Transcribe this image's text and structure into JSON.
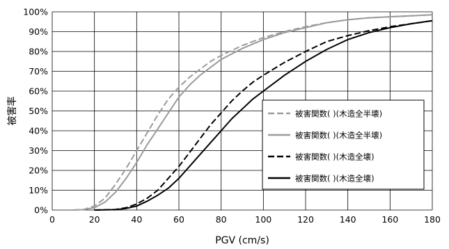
{
  "chart_data": {
    "type": "line",
    "title": "",
    "xlabel": "PGV (cm/s)",
    "ylabel": "被害率",
    "xlim": [
      0,
      180
    ],
    "ylim": [
      0,
      1
    ],
    "x_ticks": [
      0,
      20,
      40,
      60,
      80,
      100,
      120,
      140,
      160,
      180
    ],
    "x_tick_labels": [
      "0",
      "20",
      "40",
      "60",
      "80",
      "100",
      "120",
      "140",
      "160",
      "180"
    ],
    "y_ticks": [
      0,
      0.1,
      0.2,
      0.3,
      0.4,
      0.5,
      0.6,
      0.7,
      0.8,
      0.9,
      1.0
    ],
    "y_tick_labels": [
      "0%",
      "10%",
      "20%",
      "30%",
      "40%",
      "50%",
      "60%",
      "70%",
      "80%",
      "90%",
      "100%"
    ],
    "grid": true,
    "legend_position": "right",
    "colors": {
      "gray": "#9a9a9a",
      "black": "#000000",
      "grid": "#000000"
    },
    "series": [
      {
        "name": "被害関数( )(木造全半壊)",
        "color": "#9a9a9a",
        "dash": "dashed",
        "x": [
          10,
          15,
          20,
          25,
          30,
          35,
          40,
          45,
          50,
          55,
          60,
          65,
          70,
          75,
          80,
          90,
          100,
          110,
          120,
          130,
          140,
          150,
          160,
          170,
          180
        ],
        "y": [
          0.0,
          0.003,
          0.02,
          0.06,
          0.13,
          0.21,
          0.3,
          0.39,
          0.48,
          0.56,
          0.62,
          0.67,
          0.71,
          0.75,
          0.78,
          0.83,
          0.87,
          0.9,
          0.925,
          0.945,
          0.96,
          0.97,
          0.975,
          0.98,
          0.985
        ]
      },
      {
        "name": "被害関数( )(木造全半壊)",
        "color": "#9a9a9a",
        "dash": "solid",
        "x": [
          10,
          15,
          20,
          25,
          30,
          35,
          40,
          45,
          50,
          55,
          60,
          65,
          70,
          75,
          80,
          90,
          100,
          110,
          120,
          130,
          140,
          150,
          160,
          170,
          180
        ],
        "y": [
          0.0,
          0.002,
          0.012,
          0.04,
          0.09,
          0.16,
          0.24,
          0.33,
          0.41,
          0.49,
          0.57,
          0.63,
          0.68,
          0.72,
          0.76,
          0.815,
          0.86,
          0.895,
          0.92,
          0.945,
          0.96,
          0.97,
          0.975,
          0.98,
          0.985
        ]
      },
      {
        "name": "被害関数( )(木造全壊)",
        "color": "#000000",
        "dash": "dashed",
        "x": [
          20,
          30,
          35,
          40,
          45,
          50,
          55,
          60,
          65,
          70,
          75,
          80,
          85,
          90,
          95,
          100,
          110,
          120,
          130,
          140,
          150,
          160,
          170,
          180
        ],
        "y": [
          0.0,
          0.003,
          0.012,
          0.03,
          0.06,
          0.1,
          0.16,
          0.22,
          0.29,
          0.36,
          0.43,
          0.49,
          0.55,
          0.6,
          0.645,
          0.68,
          0.745,
          0.8,
          0.85,
          0.88,
          0.905,
          0.925,
          0.94,
          0.955
        ]
      },
      {
        "name": "被害関数( )(木造全壊)",
        "color": "#000000",
        "dash": "solid",
        "x": [
          20,
          30,
          35,
          40,
          45,
          50,
          55,
          60,
          65,
          70,
          75,
          80,
          85,
          90,
          95,
          100,
          110,
          120,
          130,
          140,
          150,
          160,
          170,
          180
        ],
        "y": [
          0.0,
          0.002,
          0.008,
          0.02,
          0.045,
          0.075,
          0.11,
          0.16,
          0.22,
          0.28,
          0.34,
          0.4,
          0.46,
          0.51,
          0.56,
          0.6,
          0.68,
          0.75,
          0.81,
          0.86,
          0.895,
          0.92,
          0.94,
          0.955
        ]
      }
    ]
  }
}
